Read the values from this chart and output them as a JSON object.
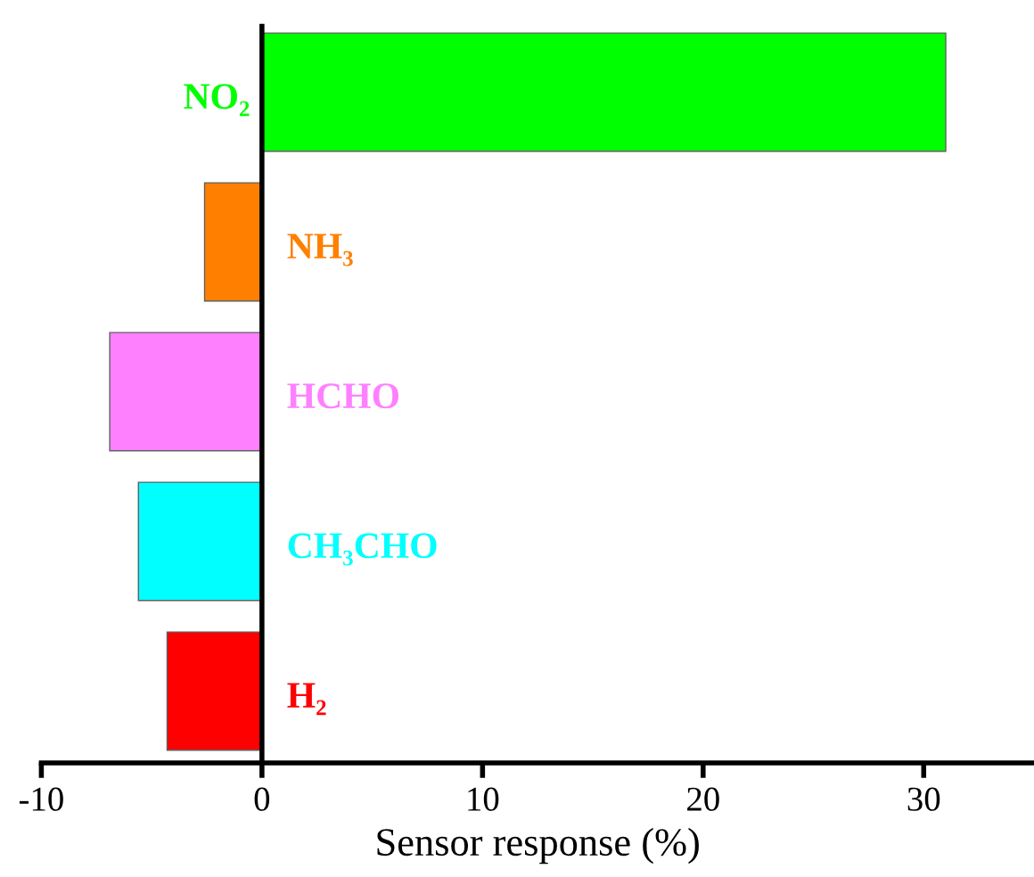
{
  "chart_data": {
    "type": "bar",
    "orientation": "horizontal",
    "xlabel": "Sensor response (%)",
    "categories": [
      "NO₂",
      "NH₃",
      "HCHO",
      "CH₃CHO",
      "H₂"
    ],
    "values": [
      31.0,
      -2.6,
      -6.9,
      -5.6,
      -4.3
    ],
    "colors": [
      "#00ff00",
      "#ff8000",
      "#ff80ff",
      "#00ffff",
      "#ff0000"
    ],
    "xlim": [
      -10,
      35
    ],
    "xticks": [
      -10,
      0,
      10,
      20,
      30
    ],
    "grid": false,
    "legend": false
  }
}
